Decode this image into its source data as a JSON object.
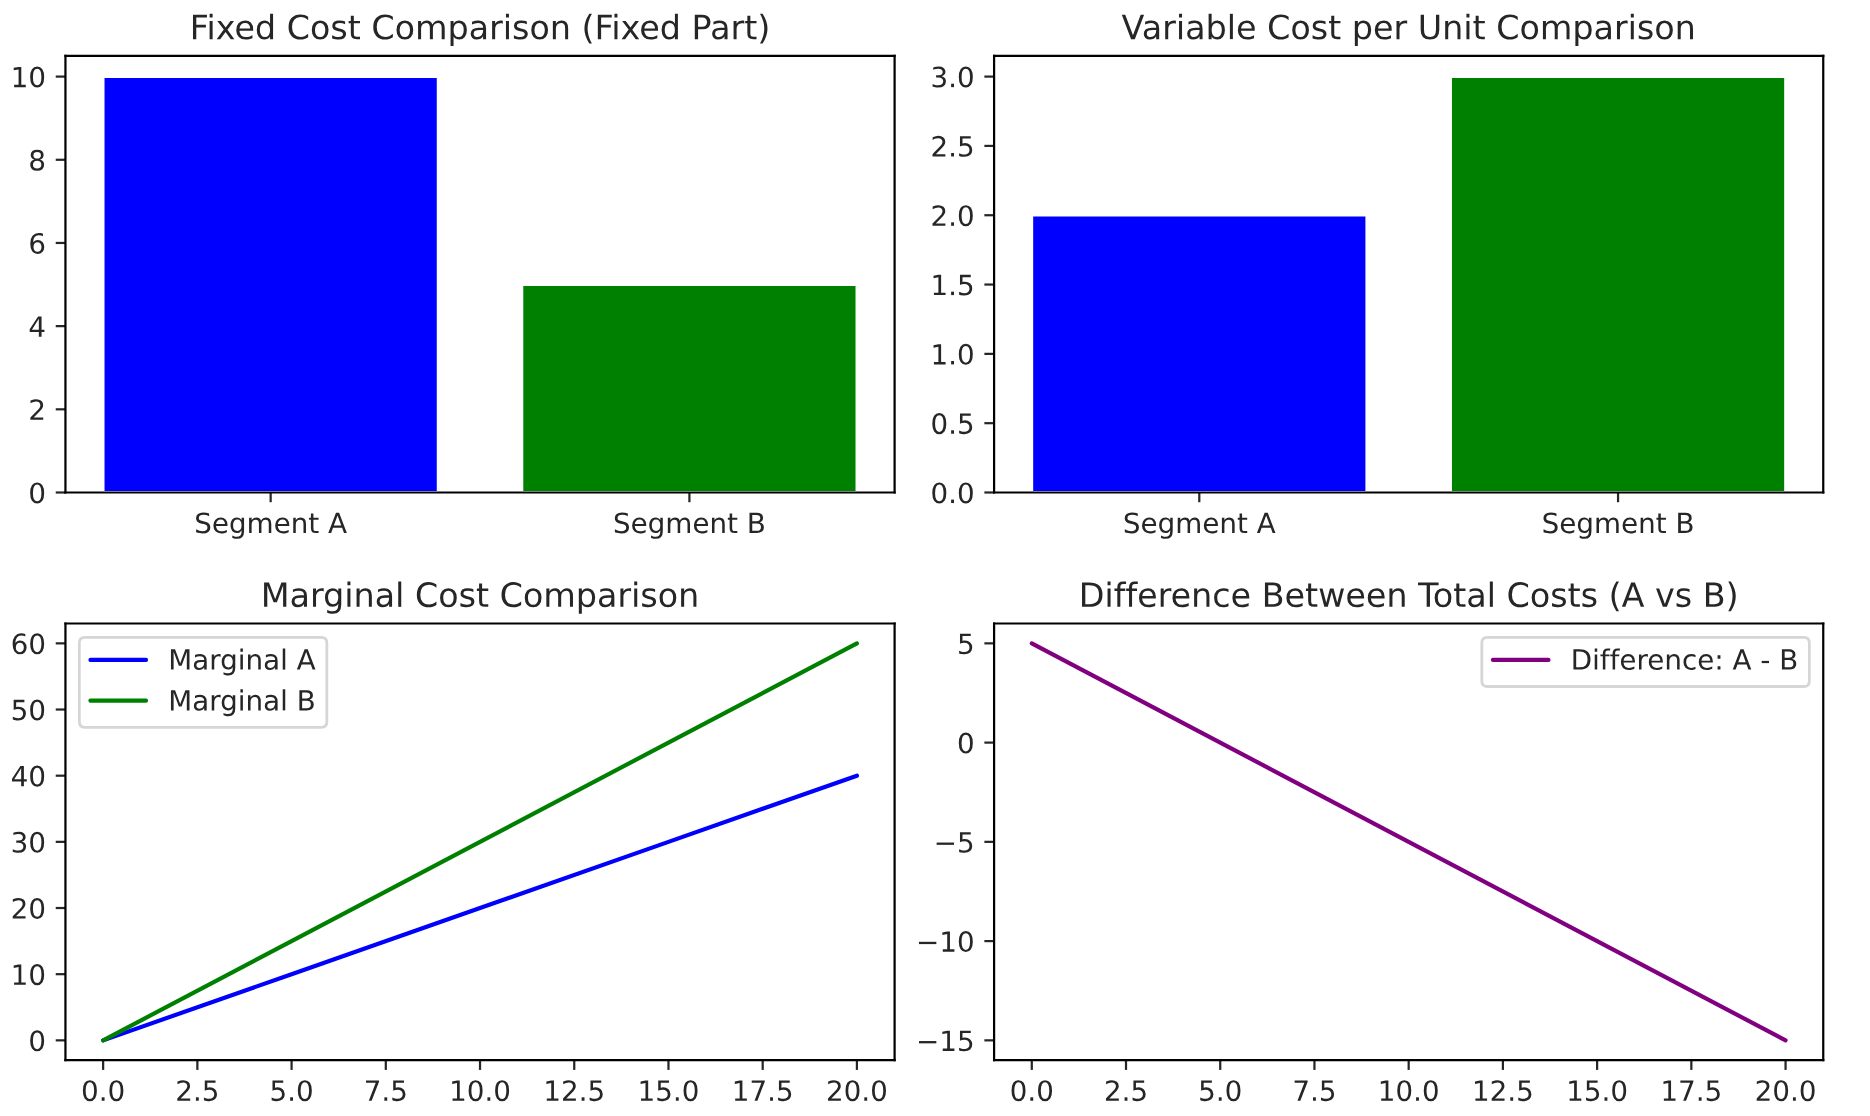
{
  "chart_data": [
    {
      "type": "bar",
      "title": "Fixed Cost Comparison (Fixed Part)",
      "categories": [
        "Segment A",
        "Segment B"
      ],
      "values": [
        10,
        5
      ],
      "colors": [
        "#0000ff",
        "#008000"
      ],
      "ylim": [
        0,
        10.5
      ],
      "yticks": [
        0,
        2,
        4,
        6,
        8,
        10
      ]
    },
    {
      "type": "bar",
      "title": "Variable Cost per Unit Comparison",
      "categories": [
        "Segment A",
        "Segment B"
      ],
      "values": [
        2,
        3
      ],
      "colors": [
        "#0000ff",
        "#008000"
      ],
      "ylim": [
        0,
        3.15
      ],
      "yticks": [
        {
          "value": 0,
          "label": "0.0"
        },
        {
          "value": 0.5,
          "label": "0.5"
        },
        {
          "value": 1,
          "label": "1.0"
        },
        {
          "value": 1.5,
          "label": "1.5"
        },
        {
          "value": 2,
          "label": "2.0"
        },
        {
          "value": 2.5,
          "label": "2.5"
        },
        {
          "value": 3,
          "label": "3.0"
        }
      ]
    },
    {
      "type": "line",
      "title": "Marginal Cost Comparison",
      "series": [
        {
          "name": "Marginal A",
          "color": "#0000ff",
          "x": [
            0,
            5,
            10,
            15,
            20
          ],
          "values": [
            0,
            10,
            20,
            30,
            40
          ]
        },
        {
          "name": "Marginal B",
          "color": "#008000",
          "x": [
            0,
            5,
            10,
            15,
            20
          ],
          "values": [
            0,
            15,
            30,
            45,
            60
          ]
        }
      ],
      "legend": "top left",
      "xlim": [
        -1,
        21
      ],
      "xticks": [
        {
          "value": 0,
          "label": "0.0"
        },
        {
          "value": 2.5,
          "label": "2.5"
        },
        {
          "value": 5,
          "label": "5.0"
        },
        {
          "value": 7.5,
          "label": "7.5"
        },
        {
          "value": 10,
          "label": "10.0"
        },
        {
          "value": 12.5,
          "label": "12.5"
        },
        {
          "value": 15,
          "label": "15.0"
        },
        {
          "value": 17.5,
          "label": "17.5"
        },
        {
          "value": 20,
          "label": "20.0"
        }
      ],
      "ylim": [
        -3,
        63
      ],
      "yticks": [
        0,
        10,
        20,
        30,
        40,
        50,
        60
      ]
    },
    {
      "type": "line",
      "title": "Difference Between Total Costs (A vs B)",
      "series": [
        {
          "name": "Difference: A - B",
          "color": "#800080",
          "x": [
            0,
            5,
            10,
            15,
            20
          ],
          "values": [
            5,
            0,
            -5,
            -10,
            -15
          ]
        }
      ],
      "legend": "top right",
      "xlim": [
        -1,
        21
      ],
      "xticks": [
        {
          "value": 0,
          "label": "0.0"
        },
        {
          "value": 2.5,
          "label": "2.5"
        },
        {
          "value": 5,
          "label": "5.0"
        },
        {
          "value": 7.5,
          "label": "7.5"
        },
        {
          "value": 10,
          "label": "10.0"
        },
        {
          "value": 12.5,
          "label": "12.5"
        },
        {
          "value": 15,
          "label": "15.0"
        },
        {
          "value": 17.5,
          "label": "17.5"
        },
        {
          "value": 20,
          "label": "20.0"
        }
      ],
      "ylim": [
        -16,
        6
      ],
      "yticks": [
        {
          "value": -15,
          "label": "−15"
        },
        {
          "value": -10,
          "label": "−10"
        },
        {
          "value": -5,
          "label": "−5"
        },
        {
          "value": 0,
          "label": "0"
        },
        {
          "value": 5,
          "label": "5"
        }
      ]
    }
  ]
}
